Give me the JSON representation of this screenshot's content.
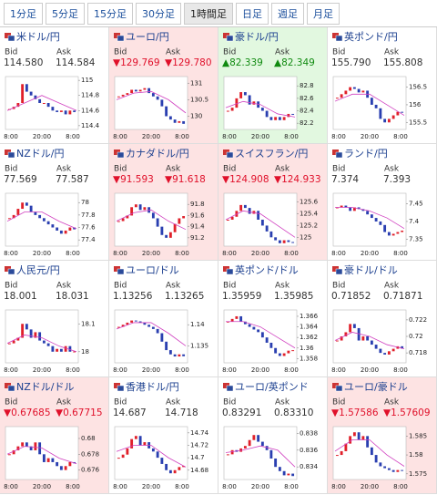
{
  "tabs": [
    "1分足",
    "5分足",
    "15分足",
    "30分足",
    "1時間足",
    "日足",
    "週足",
    "月足"
  ],
  "selected_tab": 4,
  "labels": {
    "bid": "Bid",
    "ask": "Ask"
  },
  "x_labels": [
    "8:00",
    "20:00",
    "8:00"
  ],
  "panels": [
    {
      "title": "米ドル/円",
      "bid": "114.580",
      "ask": "114.584",
      "bg": "#ffffff",
      "ylim": [
        114.35,
        115.05
      ],
      "yticks": [
        115,
        114.8,
        114.6,
        114.4
      ],
      "values": [
        114.62,
        114.65,
        114.7,
        114.95,
        114.85,
        114.8,
        114.75,
        114.7,
        114.7,
        114.65,
        114.6,
        114.58,
        114.6,
        114.55,
        114.6,
        114.58
      ],
      "ma": [
        114.6,
        114.7,
        114.8,
        114.7,
        114.6
      ]
    },
    {
      "title": "ユーロ/円",
      "bid": "▼129.769",
      "ask": "▼129.780",
      "bg": "#fde3e3",
      "ylim": [
        129.6,
        131.2
      ],
      "yticks": [
        131,
        130.5,
        130
      ],
      "values": [
        130.6,
        130.65,
        130.7,
        130.8,
        130.75,
        130.8,
        130.85,
        130.7,
        130.6,
        130.5,
        130.3,
        130.0,
        129.9,
        129.8,
        129.85,
        129.77
      ],
      "ma": [
        130.5,
        130.7,
        130.75,
        130.5,
        130.1
      ]
    },
    {
      "title": "豪ドル/円",
      "bid": "▲82.339",
      "ask": "▲82.349",
      "bg": "#e2f8e0",
      "ylim": [
        82.1,
        82.95
      ],
      "yticks": [
        82.8,
        82.6,
        82.4,
        82.2
      ],
      "values": [
        82.4,
        82.45,
        82.6,
        82.7,
        82.65,
        82.5,
        82.55,
        82.45,
        82.4,
        82.3,
        82.25,
        82.3,
        82.25,
        82.3,
        82.35,
        82.34
      ],
      "ma": [
        82.45,
        82.55,
        82.5,
        82.35,
        82.3
      ]
    },
    {
      "title": "英ポンド/円",
      "bid": "155.790",
      "ask": "155.808",
      "bg": "#ffffff",
      "ylim": [
        155.3,
        156.8
      ],
      "yticks": [
        156.5,
        156,
        155.5
      ],
      "values": [
        156.2,
        156.3,
        156.4,
        156.5,
        156.45,
        156.35,
        156.4,
        156.2,
        156.0,
        155.9,
        155.6,
        155.5,
        155.6,
        155.7,
        155.8,
        155.79
      ],
      "ma": [
        156.1,
        156.3,
        156.3,
        156.0,
        155.7
      ]
    },
    {
      "title": "NZドル/円",
      "bid": "77.569",
      "ask": "77.587",
      "bg": "#ffffff",
      "ylim": [
        77.3,
        78.15
      ],
      "yticks": [
        78,
        77.8,
        77.6,
        77.4
      ],
      "values": [
        77.75,
        77.8,
        77.9,
        78.0,
        77.95,
        77.85,
        77.8,
        77.75,
        77.7,
        77.65,
        77.6,
        77.55,
        77.5,
        77.55,
        77.6,
        77.57
      ],
      "ma": [
        77.7,
        77.85,
        77.85,
        77.7,
        77.58
      ]
    },
    {
      "title": "カナダドル/円",
      "bid": "▼91.593",
      "ask": "▼91.618",
      "bg": "#fde3e3",
      "ylim": [
        91.05,
        92.0
      ],
      "yticks": [
        91.8,
        91.6,
        91.4,
        91.2
      ],
      "values": [
        91.5,
        91.55,
        91.6,
        91.75,
        91.8,
        91.7,
        91.75,
        91.65,
        91.55,
        91.4,
        91.25,
        91.2,
        91.3,
        91.45,
        91.55,
        91.59
      ],
      "ma": [
        91.5,
        91.65,
        91.7,
        91.5,
        91.35
      ]
    },
    {
      "title": "スイスフラン/円",
      "bid": "▼124.908",
      "ask": "▼124.933",
      "bg": "#fde3e3",
      "ylim": [
        124.85,
        125.75
      ],
      "yticks": [
        125.6,
        125.4,
        125.2,
        125
      ],
      "values": [
        125.3,
        125.35,
        125.45,
        125.55,
        125.5,
        125.4,
        125.45,
        125.3,
        125.2,
        125.1,
        125.0,
        124.95,
        124.9,
        124.95,
        124.92,
        124.91
      ],
      "ma": [
        125.3,
        125.45,
        125.4,
        125.2,
        125.0
      ]
    },
    {
      "title": "ランド/円",
      "bid": "7.374",
      "ask": "7.393",
      "bg": "#ffffff",
      "ylim": [
        7.33,
        7.48
      ],
      "yticks": [
        7.45,
        7.4,
        7.35
      ],
      "values": [
        7.44,
        7.445,
        7.44,
        7.43,
        7.44,
        7.435,
        7.43,
        7.42,
        7.41,
        7.4,
        7.39,
        7.37,
        7.36,
        7.365,
        7.37,
        7.374
      ],
      "ma": [
        7.44,
        7.44,
        7.43,
        7.41,
        7.38
      ]
    },
    {
      "title": "人民元/円",
      "bid": "18.001",
      "ask": "18.031",
      "bg": "#ffffff",
      "ylim": [
        17.96,
        18.15
      ],
      "yticks": [
        18.1,
        18
      ],
      "values": [
        18.03,
        18.04,
        18.05,
        18.1,
        18.08,
        18.05,
        18.07,
        18.04,
        18.03,
        18.02,
        18.0,
        18.01,
        18.0,
        18.02,
        18.0,
        18.001
      ],
      "ma": [
        18.03,
        18.06,
        18.05,
        18.02,
        18.0
      ]
    },
    {
      "title": "ユーロ/ドル",
      "bid": "1.13256",
      "ask": "1.13265",
      "bg": "#ffffff",
      "ylim": [
        1.131,
        1.1435
      ],
      "yticks": [
        1.14,
        1.135
      ],
      "values": [
        1.1395,
        1.14,
        1.1405,
        1.141,
        1.1408,
        1.1405,
        1.14,
        1.1395,
        1.139,
        1.138,
        1.136,
        1.134,
        1.133,
        1.1325,
        1.133,
        1.13256
      ],
      "ma": [
        1.139,
        1.1405,
        1.1405,
        1.138,
        1.135
      ]
    },
    {
      "title": "英ポンド/ドル",
      "bid": "1.35959",
      "ask": "1.35985",
      "bg": "#ffffff",
      "ylim": [
        1.3572,
        1.3672
      ],
      "yticks": [
        1.366,
        1.364,
        1.362,
        1.36,
        1.358
      ],
      "values": [
        1.365,
        1.3655,
        1.366,
        1.365,
        1.3645,
        1.364,
        1.3635,
        1.363,
        1.362,
        1.361,
        1.36,
        1.359,
        1.3585,
        1.359,
        1.3595,
        1.35959
      ],
      "ma": [
        1.365,
        1.365,
        1.364,
        1.362,
        1.36
      ]
    },
    {
      "title": "豪ドル/ドル",
      "bid": "0.71852",
      "ask": "0.71871",
      "bg": "#ffffff",
      "ylim": [
        0.7168,
        0.7232
      ],
      "yticks": [
        0.722,
        0.72,
        0.718
      ],
      "values": [
        0.7195,
        0.72,
        0.7205,
        0.7215,
        0.721,
        0.7195,
        0.72,
        0.7195,
        0.719,
        0.7185,
        0.718,
        0.7178,
        0.7182,
        0.7185,
        0.7188,
        0.71852
      ],
      "ma": [
        0.7195,
        0.7205,
        0.72,
        0.719,
        0.7185
      ]
    },
    {
      "title": "NZドル/ドル",
      "bid": "▼0.67685",
      "ask": "▼0.67715",
      "bg": "#fde3e3",
      "ylim": [
        0.6748,
        0.6815
      ],
      "yticks": [
        0.68,
        0.678,
        0.676
      ],
      "values": [
        0.678,
        0.6785,
        0.679,
        0.6795,
        0.679,
        0.6785,
        0.6795,
        0.678,
        0.677,
        0.6775,
        0.677,
        0.6765,
        0.676,
        0.6765,
        0.677,
        0.67685
      ],
      "ma": [
        0.678,
        0.679,
        0.6788,
        0.6775,
        0.6768
      ]
    },
    {
      "title": "香港ドル/円",
      "bid": "14.687",
      "ask": "14.718",
      "bg": "#ffffff",
      "ylim": [
        14.665,
        14.75
      ],
      "yticks": [
        14.74,
        14.72,
        14.7,
        14.68
      ],
      "values": [
        14.7,
        14.705,
        14.715,
        14.73,
        14.735,
        14.72,
        14.725,
        14.715,
        14.71,
        14.7,
        14.69,
        14.68,
        14.675,
        14.68,
        14.685,
        14.687
      ],
      "ma": [
        14.71,
        14.72,
        14.72,
        14.7,
        14.685
      ]
    },
    {
      "title": "ユーロ/英ポンド",
      "bid": "0.83291",
      "ask": "0.83310",
      "bg": "#ffffff",
      "ylim": [
        0.8325,
        0.8388
      ],
      "yticks": [
        0.838,
        0.836,
        0.834
      ],
      "values": [
        0.8355,
        0.836,
        0.8358,
        0.8362,
        0.8365,
        0.8372,
        0.8378,
        0.837,
        0.8365,
        0.836,
        0.835,
        0.834,
        0.8335,
        0.833,
        0.8332,
        0.83291
      ],
      "ma": [
        0.8357,
        0.836,
        0.8365,
        0.836,
        0.834
      ]
    },
    {
      "title": "ユーロ/豪ドル",
      "bid": "▼1.57586",
      "ask": "▼1.57609",
      "bg": "#fde3e3",
      "ylim": [
        1.5735,
        1.5875
      ],
      "yticks": [
        1.585,
        1.58,
        1.575
      ],
      "values": [
        1.58,
        1.581,
        1.583,
        1.585,
        1.586,
        1.584,
        1.585,
        1.582,
        1.58,
        1.578,
        1.577,
        1.5765,
        1.576,
        1.5755,
        1.576,
        1.57586
      ],
      "ma": [
        1.581,
        1.584,
        1.584,
        1.58,
        1.577
      ]
    }
  ]
}
